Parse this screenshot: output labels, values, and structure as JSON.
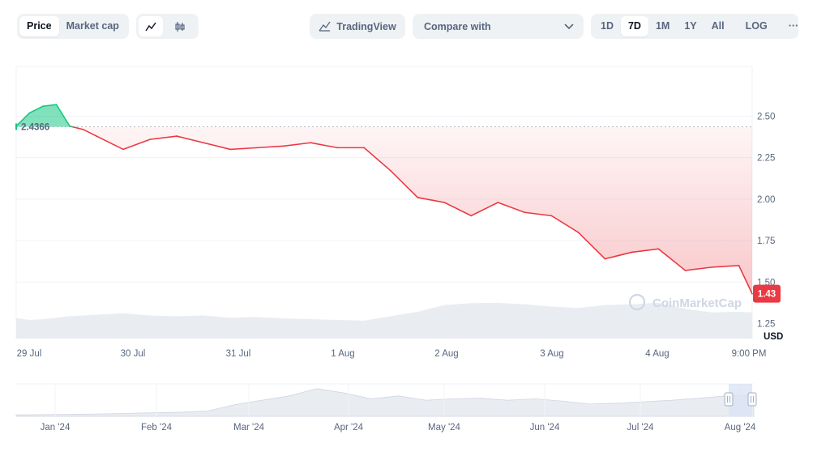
{
  "toolbar": {
    "view_tabs": [
      "Price",
      "Market cap"
    ],
    "active_view": "Price",
    "chart_style": [
      "line-chart-icon",
      "candlestick-icon"
    ],
    "tradingview_label": "TradingView",
    "compare_label": "Compare with",
    "ranges": [
      "1D",
      "7D",
      "1M",
      "1Y",
      "All"
    ],
    "active_range": "7D",
    "log_label": "LOG",
    "more_label": "···"
  },
  "colors": {
    "up": "#16c784",
    "down": "#ea3943",
    "axis_text": "#58667e",
    "grid": "#eff2f5"
  },
  "chart_data": {
    "type": "line",
    "title": "",
    "ylabel": "USD",
    "ylim": [
      1.15,
      2.8
    ],
    "yticks": [
      1.25,
      1.5,
      1.75,
      2.0,
      2.25,
      2.5
    ],
    "ytick_labels": [
      "1.25",
      "1.50",
      "1.75",
      "2.00",
      "2.25",
      "2.50"
    ],
    "xtick_labels": [
      "29 Jul",
      "30 Jul",
      "31 Jul",
      "1 Aug",
      "2 Aug",
      "3 Aug",
      "4 Aug",
      "9:00 PM"
    ],
    "reference_label": "2.4366",
    "reference_value": 2.4366,
    "current_label": "1.43",
    "current_value": 1.43,
    "watermark": "CoinMarketCap",
    "x_hours": [
      0,
      3,
      6,
      9,
      12,
      15,
      18,
      24,
      30,
      36,
      42,
      48,
      54,
      60,
      66,
      72,
      78,
      84,
      90,
      96,
      102,
      108,
      114,
      120,
      126,
      132,
      138,
      144,
      150,
      156,
      162,
      165
    ],
    "price": [
      2.44,
      2.52,
      2.56,
      2.57,
      2.44,
      2.42,
      2.38,
      2.3,
      2.36,
      2.38,
      2.34,
      2.3,
      2.31,
      2.32,
      2.34,
      2.31,
      2.31,
      2.17,
      2.01,
      1.98,
      1.9,
      1.98,
      1.92,
      1.9,
      1.8,
      1.64,
      1.68,
      1.7,
      1.57,
      1.59,
      1.6,
      1.43
    ],
    "volume_relative": [
      0.55,
      0.5,
      0.52,
      0.56,
      0.6,
      0.62,
      0.64,
      0.68,
      0.62,
      0.6,
      0.62,
      0.56,
      0.58,
      0.54,
      0.52,
      0.5,
      0.48,
      0.6,
      0.72,
      0.9,
      0.95,
      0.96,
      0.92,
      0.86,
      0.82,
      0.9,
      0.92,
      0.96,
      0.8,
      0.7,
      0.72,
      0.7
    ],
    "navigator": {
      "xtick_labels": [
        "Jan '24",
        "Feb '24",
        "Mar '24",
        "Apr '24",
        "May '24",
        "Jun '24",
        "Jul '24",
        "Aug '24"
      ],
      "series_relative": [
        0.05,
        0.06,
        0.07,
        0.08,
        0.1,
        0.12,
        0.14,
        0.18,
        0.4,
        0.55,
        0.7,
        0.95,
        0.8,
        0.6,
        0.7,
        0.55,
        0.6,
        0.62,
        0.55,
        0.6,
        0.52,
        0.42,
        0.45,
        0.5,
        0.55,
        0.62,
        0.7,
        0.72
      ],
      "selected_range": [
        "Jul 29",
        "Aug 4"
      ]
    }
  }
}
